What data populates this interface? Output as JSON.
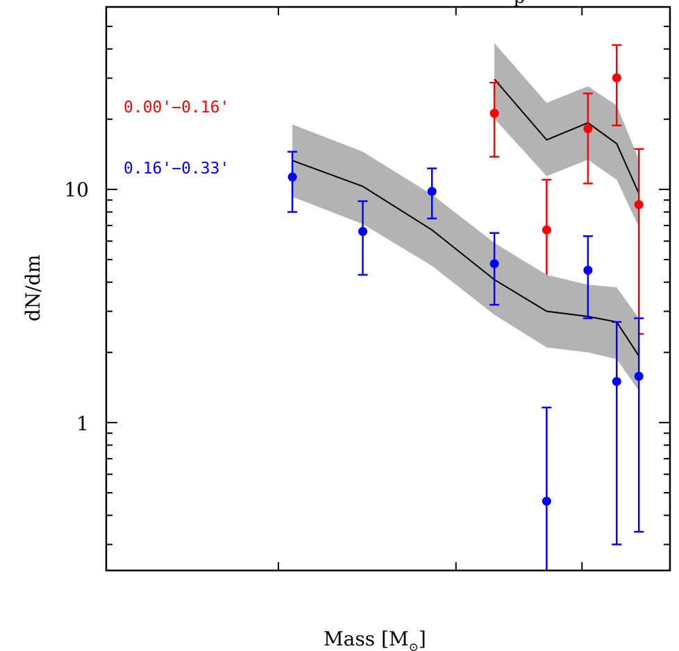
{
  "chart_data": {
    "type": "scatter",
    "title_fragment": "p",
    "xlabel": "Mass [M",
    "xlabel_sub": "⊙",
    "xlabel_close": "]",
    "ylabel": "dN/dm",
    "xscale": "log",
    "yscale": "log",
    "xlim": [
      0.27,
      0.978
    ],
    "ylim": [
      0.232,
      60.6
    ],
    "x_ticks": [
      0.4,
      0.6,
      0.8
    ],
    "x_tick_labels_visible": false,
    "y_major_ticks": [
      1,
      10
    ],
    "y_tick_labels": [
      "1",
      "10"
    ],
    "y_minor_ticks": [
      0.3,
      0.4,
      0.5,
      0.6,
      0.7,
      0.8,
      0.9,
      2,
      3,
      4,
      5,
      6,
      7,
      8,
      9,
      20,
      30,
      40,
      50
    ],
    "grid": false,
    "legend_position": "top-left",
    "colors": {
      "band": "#b3b3b3",
      "model_line": "#000000"
    },
    "series": [
      {
        "name": "0.00'−0.16'",
        "color": "#ff0000",
        "x": [
          0.655,
          0.738,
          0.811,
          0.866,
          0.911
        ],
        "y": [
          21.2,
          6.7,
          18.2,
          30.1,
          8.6
        ],
        "y_err_upper": [
          28.7,
          11.0,
          25.8,
          41.6,
          14.9
        ],
        "y_err_lower": [
          13.8,
          3.0,
          10.6,
          18.8,
          2.4
        ],
        "model": {
          "x": [
            0.655,
            0.738,
            0.811,
            0.866,
            0.911
          ],
          "y": [
            29.7,
            16.3,
            19.3,
            15.7,
            9.6
          ],
          "band_upper": [
            42.4,
            23.5,
            27.7,
            22.9,
            13.4
          ],
          "band_lower": [
            20.1,
            11.4,
            13.4,
            11.0,
            6.9
          ]
        }
      },
      {
        "name": "0.16'−0.33'",
        "color": "#0000ff",
        "x": [
          0.413,
          0.485,
          0.568,
          0.655,
          0.738,
          0.811,
          0.866,
          0.911
        ],
        "y": [
          11.3,
          6.6,
          9.8,
          4.8,
          0.46,
          4.5,
          1.5,
          1.58
        ],
        "y_err_upper": [
          14.5,
          8.9,
          12.3,
          6.5,
          1.16,
          6.3,
          2.7,
          2.8
        ],
        "y_err_lower": [
          8.0,
          4.3,
          7.5,
          3.2,
          0.1,
          2.8,
          0.3,
          0.34
        ],
        "model": {
          "x": [
            0.413,
            0.485,
            0.568,
            0.655,
            0.738,
            0.811,
            0.866,
            0.911
          ],
          "y": [
            13.3,
            10.3,
            6.7,
            4.1,
            3.0,
            2.85,
            2.7,
            1.93
          ],
          "band_upper": [
            19.0,
            14.5,
            9.5,
            5.9,
            4.3,
            3.9,
            3.8,
            2.8
          ],
          "band_lower": [
            9.3,
            7.1,
            4.7,
            2.9,
            2.1,
            2.0,
            1.87,
            1.37
          ]
        }
      }
    ]
  }
}
